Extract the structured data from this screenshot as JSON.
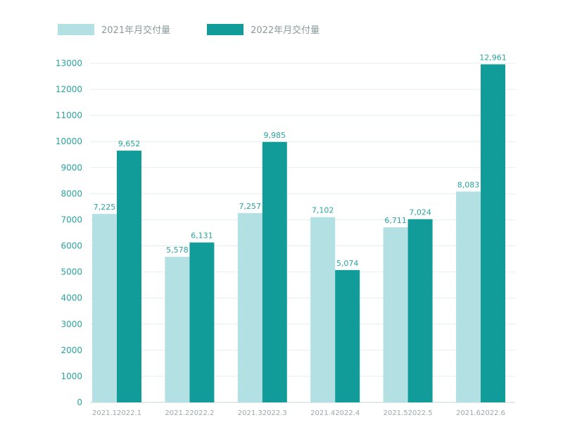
{
  "legend": {
    "series_2021_label": "2021年月交付量",
    "series_2022_label": "2022年月交付量"
  },
  "colors": {
    "series_2021": "#b2e0e3",
    "series_2022": "#119c99",
    "axis_text": "#2aa39f",
    "data_label": "#2aa39f",
    "category_text": "#9aa7a8",
    "grid": "#e4eeee",
    "baseline": "#c9d5d6"
  },
  "chart_data": {
    "type": "bar",
    "title": "",
    "xlabel": "",
    "ylabel": "",
    "ylim": [
      0,
      13000
    ],
    "yticks": [
      0,
      1000,
      2000,
      3000,
      4000,
      5000,
      6000,
      7000,
      8000,
      9000,
      10000,
      11000,
      12000,
      13000
    ],
    "ytick_labels": [
      "0",
      "1000",
      "2000",
      "3000",
      "4000",
      "5000",
      "6000",
      "7000",
      "8000",
      "9000",
      "10000",
      "11000",
      "12000",
      "13000"
    ],
    "grid": true,
    "legend_position": "top-left",
    "groups": [
      "1",
      "2",
      "3",
      "4",
      "5",
      "6"
    ],
    "series": [
      {
        "name": "2021年月交付量",
        "color_key": "series_2021",
        "categories": [
          "2021.1",
          "2021.2",
          "2021.3",
          "2021.4",
          "2021.5",
          "2021.6"
        ],
        "values": [
          7225,
          5578,
          7257,
          7102,
          6711,
          8083
        ],
        "labels": [
          "7,225",
          "5,578",
          "7,257",
          "7,102",
          "6,711",
          "8,083"
        ]
      },
      {
        "name": "2022年月交付量",
        "color_key": "series_2022",
        "categories": [
          "2022.1",
          "2022.2",
          "2022.3",
          "2022.4",
          "2022.5",
          "2022.6"
        ],
        "values": [
          9652,
          6131,
          9985,
          5074,
          7024,
          12961
        ],
        "labels": [
          "9,652",
          "6,131",
          "9,985",
          "5,074",
          "7,024",
          "12,961"
        ]
      }
    ]
  }
}
